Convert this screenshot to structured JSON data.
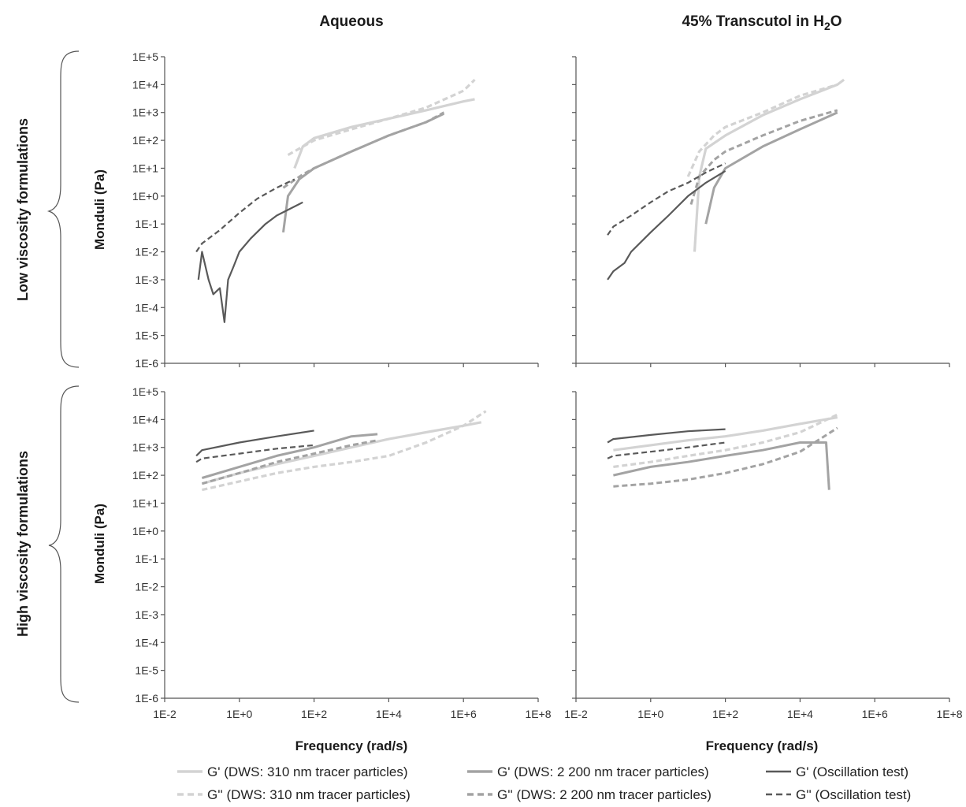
{
  "figure": {
    "col_titles": [
      "Aqueous",
      "45% Transcutol in H",
      "2",
      "O"
    ],
    "row_labels": [
      "Low viscosity formulations",
      "High viscosity formulations"
    ],
    "ylabel": "Monduli (Pa)",
    "xlabel": "Frequency (rad/s)",
    "y_ticks": [
      "1E+5",
      "1E+4",
      "1E+3",
      "1E+2",
      "1E+1",
      "1E+0",
      "1E-1",
      "1E-2",
      "1E-3",
      "1E-4",
      "1E-5",
      "1E-6"
    ],
    "x_ticks": [
      "1E-2",
      "1E+0",
      "1E+2",
      "1E+4",
      "1E+6",
      "1E+8"
    ]
  },
  "legend": [
    {
      "label": "G'  (DWS: 310 nm tracer particles)",
      "color": "#d3d3d3",
      "dash": "solid"
    },
    {
      "label": "G'  (DWS: 2 200 nm tracer particles)",
      "color": "#a3a3a3",
      "dash": "solid"
    },
    {
      "label": "G'  (Oscillation test)",
      "color": "#595959",
      "dash": "solid"
    },
    {
      "label": "G'' (DWS: 310 nm tracer particles)",
      "color": "#d3d3d3",
      "dash": "dashed"
    },
    {
      "label": "G'' (DWS: 2 200 nm tracer particles)",
      "color": "#a3a3a3",
      "dash": "dashed"
    },
    {
      "label": "G'' (Oscillation test)",
      "color": "#595959",
      "dash": "dashed"
    }
  ],
  "chart_data": [
    {
      "type": "line",
      "panel": "Aqueous / Low viscosity formulations",
      "xlabel": "Frequency (rad/s)",
      "ylabel": "Monduli (Pa)",
      "xscale": "log",
      "yscale": "log",
      "xlim": [
        0.01,
        100000000
      ],
      "ylim": [
        1e-06,
        100000
      ],
      "series": [
        {
          "name": "G'  (DWS: 310 nm tracer particles)",
          "x": [
            30,
            50,
            100,
            1000,
            10000,
            100000,
            1000000,
            2000000
          ],
          "y": [
            10,
            60,
            120,
            300,
            600,
            1200,
            2500,
            3000
          ]
        },
        {
          "name": "G'' (DWS: 310 nm tracer particles)",
          "x": [
            20,
            100,
            1000,
            10000,
            100000,
            1000000,
            2000000
          ],
          "y": [
            30,
            100,
            250,
            600,
            1500,
            6000,
            15000
          ]
        },
        {
          "name": "G'  (DWS: 2 200 nm tracer particles)",
          "x": [
            15,
            20,
            40,
            100,
            1000,
            10000,
            100000,
            300000
          ],
          "y": [
            0.05,
            1,
            4,
            10,
            40,
            150,
            450,
            900
          ]
        },
        {
          "name": "G'' (DWS: 2 200 nm tracer particles)",
          "x": [
            15,
            50,
            100,
            1000,
            10000,
            100000,
            300000
          ],
          "y": [
            2,
            6,
            10,
            40,
            150,
            450,
            1000
          ]
        },
        {
          "name": "G'  (Oscillation test)",
          "x": [
            0.08,
            0.1,
            0.15,
            0.2,
            0.3,
            0.4,
            0.5,
            0.7,
            1,
            2,
            5,
            10,
            50
          ],
          "y": [
            0.001,
            0.01,
            0.001,
            0.0003,
            0.0005,
            3e-05,
            0.001,
            0.003,
            0.01,
            0.03,
            0.1,
            0.2,
            0.6
          ]
        },
        {
          "name": "G'' (Oscillation test)",
          "x": [
            0.07,
            0.1,
            0.3,
            1,
            3,
            10,
            30
          ],
          "y": [
            0.01,
            0.02,
            0.06,
            0.25,
            0.8,
            2,
            4
          ]
        }
      ]
    },
    {
      "type": "line",
      "panel": "45% Transcutol in H2O / Low viscosity formulations",
      "xlabel": "Frequency (rad/s)",
      "ylabel": "Monduli (Pa)",
      "xscale": "log",
      "yscale": "log",
      "xlim": [
        0.01,
        100000000
      ],
      "ylim": [
        1e-06,
        100000
      ],
      "series": [
        {
          "name": "G'  (DWS: 310 nm tracer particles)",
          "x": [
            15,
            20,
            30,
            100,
            1000,
            10000,
            100000,
            150000
          ],
          "y": [
            0.01,
            5,
            50,
            150,
            800,
            3000,
            10000,
            15000
          ]
        },
        {
          "name": "G'' (DWS: 310 nm tracer particles)",
          "x": [
            10,
            20,
            50,
            100,
            1000,
            10000,
            100000
          ],
          "y": [
            5,
            40,
            150,
            300,
            1000,
            4000,
            10000
          ]
        },
        {
          "name": "G'  (DWS: 2 200 nm tracer particles)",
          "x": [
            30,
            50,
            100,
            1000,
            10000,
            100000
          ],
          "y": [
            0.1,
            2,
            10,
            60,
            250,
            1000
          ]
        },
        {
          "name": "G'' (DWS: 2 200 nm tracer particles)",
          "x": [
            12,
            20,
            50,
            100,
            1000,
            10000,
            100000
          ],
          "y": [
            0.5,
            5,
            20,
            40,
            150,
            500,
            1200
          ]
        },
        {
          "name": "G'  (Oscillation test)",
          "x": [
            0.07,
            0.1,
            0.2,
            0.3,
            1,
            3,
            10,
            30,
            100
          ],
          "y": [
            0.001,
            0.002,
            0.004,
            0.01,
            0.05,
            0.2,
            1,
            3,
            8
          ]
        },
        {
          "name": "G'' (Oscillation test)",
          "x": [
            0.07,
            0.1,
            0.3,
            1,
            3,
            10,
            30,
            100
          ],
          "y": [
            0.04,
            0.08,
            0.2,
            0.6,
            1.5,
            3,
            7,
            15
          ]
        }
      ]
    },
    {
      "type": "line",
      "panel": "Aqueous / High viscosity formulations",
      "xlabel": "Frequency (rad/s)",
      "ylabel": "Monduli (Pa)",
      "xscale": "log",
      "yscale": "log",
      "xlim": [
        0.01,
        100000000
      ],
      "ylim": [
        1e-06,
        100000
      ],
      "series": [
        {
          "name": "G'  (DWS: 310 nm tracer particles)",
          "x": [
            0.1,
            1,
            10,
            100,
            1000,
            10000,
            100000,
            1000000,
            3000000
          ],
          "y": [
            50,
            120,
            250,
            500,
            1000,
            2000,
            3500,
            6000,
            8000
          ]
        },
        {
          "name": "G'' (DWS: 310 nm tracer particles)",
          "x": [
            0.1,
            1,
            10,
            100,
            1000,
            10000,
            100000,
            1000000,
            4000000
          ],
          "y": [
            30,
            60,
            120,
            200,
            300,
            500,
            1500,
            6000,
            20000
          ]
        },
        {
          "name": "G'  (DWS: 2 200 nm tracer particles)",
          "x": [
            0.1,
            1,
            10,
            100,
            1000,
            5000
          ],
          "y": [
            80,
            200,
            500,
            1000,
            2500,
            3000
          ]
        },
        {
          "name": "G'' (DWS: 2 200 nm tracer particles)",
          "x": [
            0.1,
            1,
            10,
            100,
            1000,
            5000
          ],
          "y": [
            50,
            120,
            300,
            600,
            1200,
            1800
          ]
        },
        {
          "name": "G'  (Oscillation test)",
          "x": [
            0.07,
            0.1,
            1,
            10,
            100
          ],
          "y": [
            500,
            800,
            1500,
            2500,
            4000
          ]
        },
        {
          "name": "G'' (Oscillation test)",
          "x": [
            0.07,
            0.1,
            1,
            10,
            100
          ],
          "y": [
            300,
            400,
            600,
            900,
            1200
          ]
        }
      ]
    },
    {
      "type": "line",
      "panel": "45% Transcutol in H2O / High viscosity formulations",
      "xlabel": "Frequency (rad/s)",
      "ylabel": "Monduli (Pa)",
      "xscale": "log",
      "yscale": "log",
      "xlim": [
        0.01,
        100000000
      ],
      "ylim": [
        1e-06,
        100000
      ],
      "series": [
        {
          "name": "G'  (DWS: 310 nm tracer particles)",
          "x": [
            0.1,
            1,
            10,
            100,
            1000,
            10000,
            100000
          ],
          "y": [
            800,
            1200,
            1800,
            2500,
            4000,
            7000,
            12000
          ]
        },
        {
          "name": "G'' (DWS: 310 nm tracer particles)",
          "x": [
            0.1,
            1,
            10,
            100,
            1000,
            10000,
            100000
          ],
          "y": [
            200,
            300,
            500,
            800,
            1500,
            3500,
            15000
          ]
        },
        {
          "name": "G'  (DWS: 2 200 nm tracer particles)",
          "x": [
            0.1,
            1,
            10,
            100,
            1000,
            10000,
            50000,
            60000
          ],
          "y": [
            100,
            200,
            300,
            500,
            800,
            1500,
            1500,
            30
          ]
        },
        {
          "name": "G'' (DWS: 2 200 nm tracer particles)",
          "x": [
            0.1,
            1,
            10,
            100,
            1000,
            10000,
            100000
          ],
          "y": [
            40,
            50,
            70,
            120,
            250,
            700,
            5000
          ]
        },
        {
          "name": "G'  (Oscillation test)",
          "x": [
            0.07,
            0.1,
            1,
            10,
            100
          ],
          "y": [
            1500,
            2000,
            2800,
            3800,
            4500
          ]
        },
        {
          "name": "G'' (Oscillation test)",
          "x": [
            0.07,
            0.1,
            1,
            10,
            100
          ],
          "y": [
            400,
            500,
            700,
            1000,
            1500
          ]
        }
      ]
    }
  ]
}
